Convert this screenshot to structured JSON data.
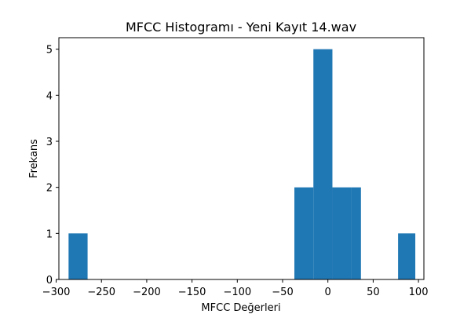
{
  "chart_data": {
    "type": "bar",
    "title": "MFCC Histogramı - Yeni Kayıt 14.wav",
    "xlabel": "MFCC Değerleri",
    "ylabel": "Frekans",
    "xlim": [
      -297,
      106
    ],
    "ylim": [
      0,
      5.25
    ],
    "bar_color": "#1f77b4",
    "bins": [
      {
        "x0": -286.3,
        "x1": -265.3,
        "count": 1
      },
      {
        "x0": -37.0,
        "x1": -16.0,
        "count": 2
      },
      {
        "x0": -16.0,
        "x1": 5.0,
        "count": 5
      },
      {
        "x0": 5.0,
        "x1": 25.9,
        "count": 2
      },
      {
        "x0": 25.9,
        "x1": 36.5,
        "count": 2
      },
      {
        "x0": 77.5,
        "x1": 96.5,
        "count": 1
      }
    ],
    "xticks": [
      {
        "value": -300,
        "label": "−300"
      },
      {
        "value": -250,
        "label": "−250"
      },
      {
        "value": -200,
        "label": "−200"
      },
      {
        "value": -150,
        "label": "−150"
      },
      {
        "value": -100,
        "label": "−100"
      },
      {
        "value": -50,
        "label": "−50"
      },
      {
        "value": 0,
        "label": "0"
      },
      {
        "value": 50,
        "label": "50"
      },
      {
        "value": 100,
        "label": "100"
      }
    ],
    "yticks": [
      {
        "value": 0,
        "label": "0"
      },
      {
        "value": 1,
        "label": "1"
      },
      {
        "value": 2,
        "label": "2"
      },
      {
        "value": 3,
        "label": "3"
      },
      {
        "value": 4,
        "label": "4"
      },
      {
        "value": 5,
        "label": "5"
      }
    ]
  }
}
